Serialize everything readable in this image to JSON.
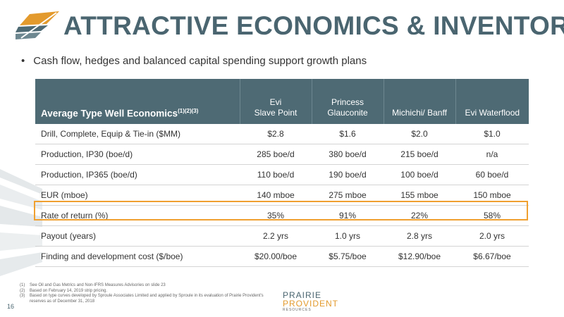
{
  "title": "ATTRACTIVE ECONOMICS & INVENTORY",
  "bullet": "Cash flow, hedges and balanced capital spending support growth plans",
  "table": {
    "header_label": "Average Type Well Economics",
    "header_sup": "(1)(2)(3)",
    "columns": [
      {
        "line1": "Evi",
        "line2": "Slave Point"
      },
      {
        "line1": "Princess",
        "line2": "Glauconite"
      },
      {
        "line1": "",
        "line2": "Michichi/ Banff"
      },
      {
        "line1": "",
        "line2": "Evi Waterflood"
      }
    ],
    "rows": [
      {
        "label": "Drill, Complete, Equip & Tie-in ($MM)",
        "values": [
          "$2.8",
          "$1.6",
          "$2.0",
          "$1.0"
        ]
      },
      {
        "label": "Production, IP30 (boe/d)",
        "values": [
          "285 boe/d",
          "380 boe/d",
          "215 boe/d",
          "n/a"
        ]
      },
      {
        "label": "Production, IP365 (boe/d)",
        "values": [
          "110 boe/d",
          "190 boe/d",
          "100 boe/d",
          "60 boe/d"
        ]
      },
      {
        "label": "EUR (mboe)",
        "values": [
          "140 mboe",
          "275 mboe",
          "155 mboe",
          "150 mboe"
        ]
      },
      {
        "label": "Rate of return (%)",
        "values": [
          "35%",
          "91%",
          "22%",
          "58%"
        ]
      },
      {
        "label": "Payout (years)",
        "values": [
          "2.2 yrs",
          "1.0 yrs",
          "2.8 yrs",
          "2.0 yrs"
        ]
      },
      {
        "label": "Finding and development cost ($/boe)",
        "values": [
          "$20.00/boe",
          "$5.75/boe",
          "$12.90/boe",
          "$6.67/boe"
        ]
      }
    ]
  },
  "footnotes": [
    {
      "num": "(1)",
      "text": "See Oil and Gas Metrics and Non-IFRS Measures Advisories on slide 23"
    },
    {
      "num": "(2)",
      "text": "Based on February 14, 2019 strip pricing."
    },
    {
      "num": "(3)",
      "text": "Based on type curves developed by Sproule Associates Limited and applied by Sproule in its evaluation of Prairie Provident's reserves as of December 31, 2018"
    }
  ],
  "page_number": "16",
  "logo": {
    "line1": "PRAIRIE",
    "line2": "PROVIDENT",
    "line3": "RESOURCES"
  },
  "colors": {
    "accent": "#4a6570",
    "header_bg": "#4e6a74",
    "highlight": "#f0a030",
    "logo_orange": "#e39a2d"
  }
}
